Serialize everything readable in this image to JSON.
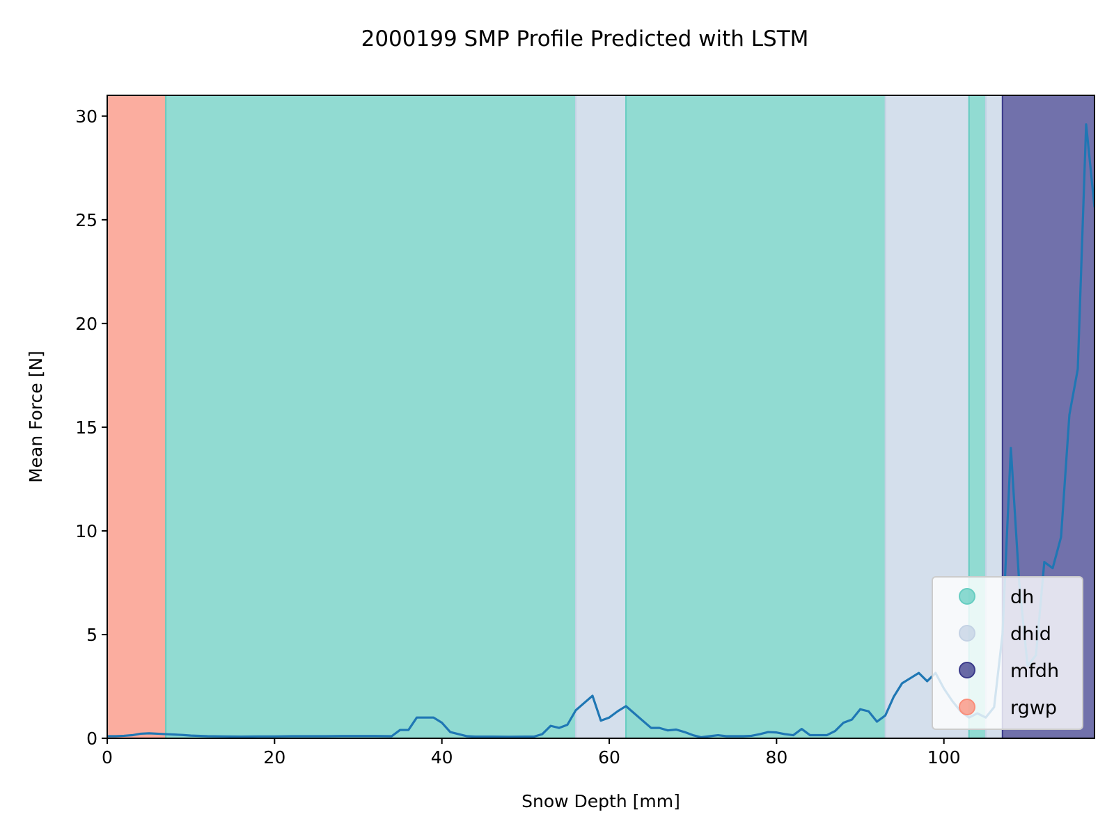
{
  "chart_data": {
    "type": "line",
    "title": "2000199 SMP Profile Predicted with LSTM",
    "xlabel": "Snow Depth [mm]",
    "ylabel": "Mean Force [N]",
    "xlim": [
      0,
      118
    ],
    "ylim": [
      0,
      31
    ],
    "x_ticks": [
      0,
      20,
      40,
      60,
      80,
      100
    ],
    "y_ticks": [
      0,
      5,
      10,
      15,
      20,
      25,
      30
    ],
    "grid": false,
    "legend_position": "lower right",
    "line_color": "#1f77b4",
    "classes": [
      {
        "name": "dh",
        "color": "#66cdc1"
      },
      {
        "name": "dhid",
        "color": "#c4d2e4"
      },
      {
        "name": "mfdh",
        "color": "#3a3a8a"
      },
      {
        "name": "rgwp",
        "color": "#fa8e7a"
      }
    ],
    "segments": [
      {
        "class": "rgwp",
        "start": 0,
        "end": 7
      },
      {
        "class": "dh",
        "start": 7,
        "end": 56
      },
      {
        "class": "dhid",
        "start": 56,
        "end": 62
      },
      {
        "class": "dh",
        "start": 62,
        "end": 93
      },
      {
        "class": "dhid",
        "start": 93,
        "end": 103
      },
      {
        "class": "dh",
        "start": 103,
        "end": 105
      },
      {
        "class": "dhid",
        "start": 105,
        "end": 107
      },
      {
        "class": "mfdh",
        "start": 107,
        "end": 118
      }
    ],
    "series": [
      {
        "x": [
          0,
          1,
          2,
          3,
          4,
          5,
          6,
          7,
          8,
          9,
          10,
          12,
          14,
          16,
          18,
          20,
          22,
          24,
          26,
          28,
          30,
          32,
          34,
          35,
          36,
          37,
          38,
          39,
          40,
          41,
          42,
          43,
          44,
          45,
          46,
          48,
          50,
          51,
          52,
          53,
          54,
          55,
          56,
          57,
          58,
          59,
          60,
          61,
          62,
          63,
          64,
          65,
          66,
          67,
          68,
          69,
          70,
          71,
          72,
          73,
          74,
          75,
          76,
          77,
          78,
          79,
          80,
          81,
          82,
          83,
          84,
          85,
          86,
          87,
          88,
          89,
          90,
          91,
          92,
          93,
          94,
          95,
          96,
          97,
          98,
          99,
          100,
          101,
          102,
          103,
          104,
          105,
          106,
          107,
          108,
          109,
          110,
          111,
          112,
          113,
          114,
          115,
          116,
          117,
          118
        ],
        "y": [
          0.1,
          0.1,
          0.12,
          0.15,
          0.22,
          0.24,
          0.22,
          0.2,
          0.18,
          0.16,
          0.13,
          0.1,
          0.09,
          0.08,
          0.09,
          0.09,
          0.1,
          0.1,
          0.1,
          0.11,
          0.11,
          0.11,
          0.1,
          0.4,
          0.4,
          1.0,
          1.0,
          1.0,
          0.75,
          0.3,
          0.2,
          0.1,
          0.08,
          0.08,
          0.08,
          0.07,
          0.08,
          0.08,
          0.2,
          0.6,
          0.5,
          0.65,
          1.35,
          1.7,
          2.05,
          0.85,
          1.0,
          1.3,
          1.55,
          1.2,
          0.85,
          0.5,
          0.5,
          0.38,
          0.42,
          0.3,
          0.15,
          0.05,
          0.1,
          0.15,
          0.1,
          0.1,
          0.1,
          0.12,
          0.2,
          0.3,
          0.28,
          0.2,
          0.15,
          0.45,
          0.15,
          0.15,
          0.15,
          0.35,
          0.75,
          0.9,
          1.4,
          1.3,
          0.8,
          1.1,
          2.0,
          2.65,
          2.9,
          3.15,
          2.75,
          3.15,
          2.4,
          1.8,
          1.3,
          1.0,
          1.2,
          1.0,
          1.5,
          5.0,
          14.0,
          7.5,
          3.5,
          4.0,
          8.5,
          8.2,
          9.7,
          15.6,
          17.8,
          29.6,
          25.6
        ]
      }
    ]
  }
}
